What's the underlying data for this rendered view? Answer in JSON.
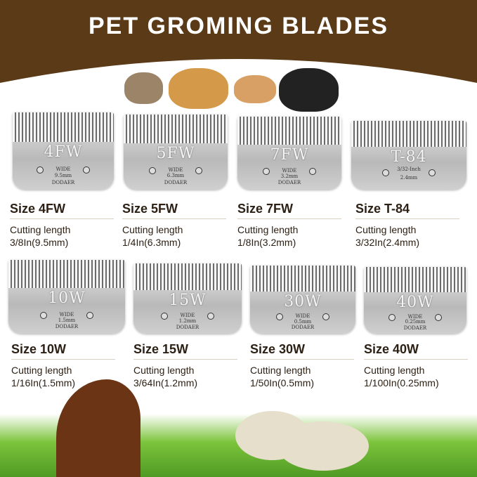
{
  "header": {
    "title": "PET GROMING BLADES",
    "bg_color": "#5a3a17"
  },
  "blades": [
    {
      "code": "4FW",
      "wide": "WIDE",
      "mm": "9.5mm",
      "brand": "DODAER",
      "size": "Size 4FW",
      "cutting": "Cutting length",
      "length": "3/8In(9.5mm)"
    },
    {
      "code": "5FW",
      "wide": "WIDE",
      "mm": "6.3mm",
      "brand": "DODAER",
      "size": "Size 5FW",
      "cutting": "Cutting length",
      "length": "1/4In(6.3mm)"
    },
    {
      "code": "7FW",
      "wide": "WIDE",
      "mm": "3.2mm",
      "brand": "DODAER",
      "size": "Size 7FW",
      "cutting": "Cutting length",
      "length": "1/8In(3.2mm)"
    },
    {
      "code": "T-84",
      "wide": "3/32-Inch",
      "mm": "2.4mm",
      "brand": "",
      "size": "Size T-84",
      "cutting": "Cutting length",
      "length": "3/32In(2.4mm)"
    },
    {
      "code": "10W",
      "wide": "WIDE",
      "mm": "1.5mm",
      "brand": "DODAER",
      "size": "Size 10W",
      "cutting": "Cutting length",
      "length": "1/16In(1.5mm)"
    },
    {
      "code": "15W",
      "wide": "WIDE",
      "mm": "1.2mm",
      "brand": "DODAER",
      "size": "Size 15W",
      "cutting": "Cutting length",
      "length": "3/64In(1.2mm)"
    },
    {
      "code": "30W",
      "wide": "WIDE",
      "mm": "0.5mm",
      "brand": "DODAER",
      "size": "Size 30W",
      "cutting": "Cutting length",
      "length": "1/50In(0.5mm)"
    },
    {
      "code": "40W",
      "wide": "WIDE",
      "mm": "0.25mm",
      "brand": "DODAER",
      "size": "Size 40W",
      "cutting": "Cutting length",
      "length": "1/100In(0.25mm)"
    }
  ]
}
